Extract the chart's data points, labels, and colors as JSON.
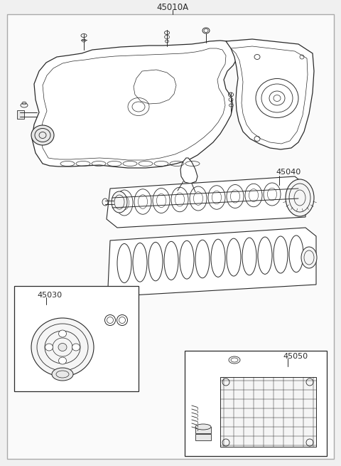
{
  "title_label": "45010A",
  "label_45040": "45040",
  "label_45030": "45030",
  "label_45050": "45050",
  "bg_color": "#f0f0f0",
  "border_color": "#999999",
  "line_color": "#2a2a2a",
  "fig_width": 4.8,
  "fig_height": 6.55,
  "dpi": 100
}
